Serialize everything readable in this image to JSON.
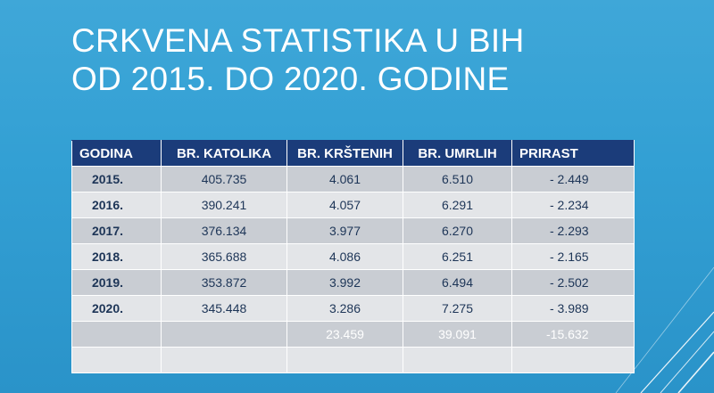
{
  "title": {
    "line1": "CRKVENA STATISTIKA U BIH",
    "line2": "OD 2015. DO 2020. GODINE"
  },
  "table": {
    "headers": [
      "GODINA",
      "BR. KATOLIKA",
      "BR. KRŠTENIH",
      "BR. UMRLIH",
      "PRIRAST"
    ],
    "rows": [
      {
        "godina": "2015.",
        "katolika": "405.735",
        "krstenih": "4.061",
        "umrlih": "6.510",
        "prirast": "- 2.449"
      },
      {
        "godina": "2016.",
        "katolika": "390.241",
        "krstenih": "4.057",
        "umrlih": "6.291",
        "prirast": "- 2.234"
      },
      {
        "godina": "2017.",
        "katolika": "376.134",
        "krstenih": "3.977",
        "umrlih": "6.270",
        "prirast": "- 2.293"
      },
      {
        "godina": "2018.",
        "katolika": "365.688",
        "krstenih": "4.086",
        "umrlih": "6.251",
        "prirast": "- 2.165"
      },
      {
        "godina": "2019.",
        "katolika": "353.872",
        "krstenih": "3.992",
        "umrlih": "6.494",
        "prirast": "- 2.502"
      },
      {
        "godina": "2020.",
        "katolika": "345.448",
        "krstenih": "3.286",
        "umrlih": "7.275",
        "prirast": "- 3.989"
      }
    ],
    "totals": {
      "krstenih": "23.459",
      "umrlih": "39.091",
      "prirast": "-15.632"
    }
  }
}
